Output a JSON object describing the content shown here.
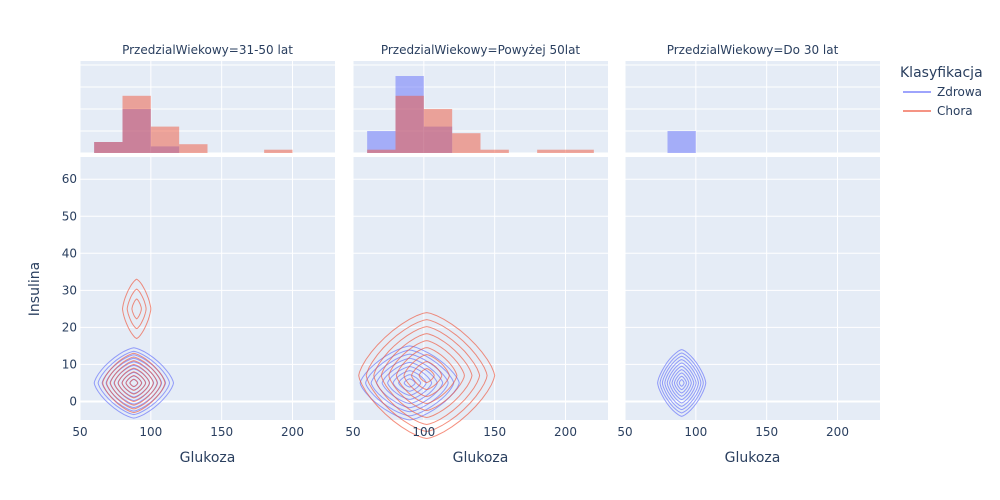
{
  "chart_data": {
    "type": "contour+histogram",
    "y_axis_label": "Insulina",
    "x_axis_label": "Glukoza",
    "xlim": [
      50,
      230
    ],
    "ylim": [
      -5,
      66
    ],
    "x_ticks": [
      50,
      100,
      150,
      200
    ],
    "y_ticks": [
      0,
      10,
      20,
      30,
      40,
      50,
      60
    ],
    "legend": {
      "title": "Klasyfikacja",
      "position": "top-right",
      "entries": [
        {
          "name": "Zdrowa",
          "color": "#636efa"
        },
        {
          "name": "Chora",
          "color": "#ef553b"
        }
      ]
    },
    "colors": {
      "plot_bg": "#e5ecf6",
      "grid": "#ffffff",
      "text": "#2a3f5f"
    },
    "histogram_bin_width": 20,
    "facets": [
      {
        "title": "PrzedzialWiekowy=31-50 lat",
        "histogram": {
          "Zdrowa": [
            [
              60,
              0.5
            ],
            [
              80,
              2.0
            ],
            [
              100,
              0.3
            ]
          ],
          "Chora": [
            [
              60,
              0.5
            ],
            [
              80,
              2.6
            ],
            [
              100,
              1.2
            ],
            [
              120,
              0.4
            ],
            [
              180,
              0.15
            ]
          ]
        },
        "contours": {
          "Zdrowa": [
            {
              "cx": 88,
              "cy": 5,
              "rx_max": 28,
              "ry_max": 9.5,
              "levels": 10
            }
          ],
          "Chora": [
            {
              "cx": 88,
              "cy": 5,
              "rx_max": 22,
              "ry_max": 8,
              "levels": 8
            },
            {
              "cx": 90,
              "cy": 25,
              "rx_max": 10,
              "ry_max": 8,
              "levels": 3
            }
          ]
        }
      },
      {
        "title": "PrzedzialWiekowy=Powyżej 50lat",
        "histogram": {
          "Zdrowa": [
            [
              60,
              1.0
            ],
            [
              80,
              3.5
            ],
            [
              100,
              1.2
            ]
          ],
          "Chora": [
            [
              60,
              0.15
            ],
            [
              80,
              2.6
            ],
            [
              100,
              2.0
            ],
            [
              120,
              0.9
            ],
            [
              140,
              0.15
            ],
            [
              180,
              0.15
            ],
            [
              200,
              0.15
            ]
          ]
        },
        "contours": {
          "Zdrowa": [
            {
              "cx": 90,
              "cy": 5,
              "rx_max": 35,
              "ry_max": 10,
              "levels": 9
            }
          ],
          "Chora": [
            {
              "cx": 102,
              "cy": 7,
              "rx_max": 48,
              "ry_max": 17,
              "levels": 9
            }
          ]
        }
      },
      {
        "title": "PrzedzialWiekowy=Do 30 lat",
        "histogram": {
          "Zdrowa": [
            [
              80,
              1.0
            ]
          ],
          "Chora": []
        },
        "contours": {
          "Zdrowa": [
            {
              "cx": 90,
              "cy": 5,
              "rx_max": 17,
              "ry_max": 9,
              "levels": 10
            }
          ],
          "Chora": []
        }
      }
    ]
  }
}
